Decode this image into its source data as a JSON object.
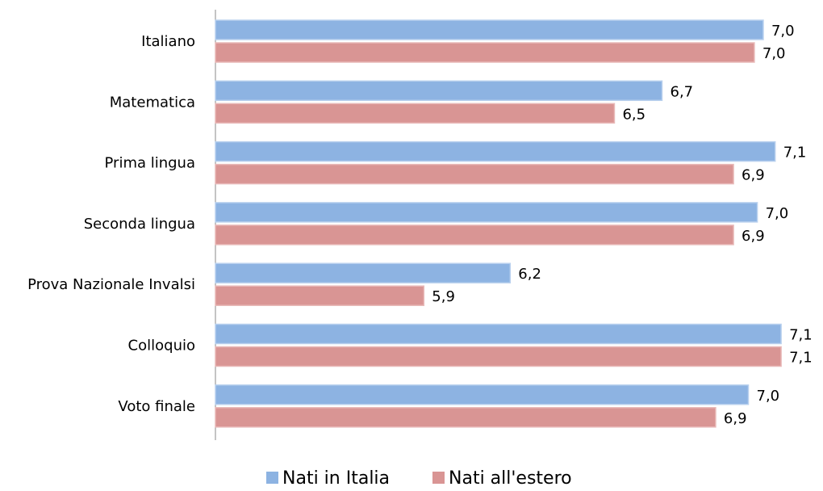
{
  "chart_data": {
    "type": "bar",
    "orientation": "horizontal",
    "categories": [
      "Italiano",
      "Matematica",
      "Prima lingua",
      "Seconda lingua",
      "Prova Nazionale Invalsi",
      "Colloquio",
      "Voto finale"
    ],
    "series": [
      {
        "name": "Nati in Italia",
        "color": "#8db3e2",
        "values": [
          7.04,
          6.7,
          7.08,
          7.02,
          6.19,
          7.1,
          6.99
        ],
        "value_labels": [
          "7,0",
          "6,7",
          "7,1",
          "7,0",
          "6,2",
          "7,1",
          "7,0"
        ]
      },
      {
        "name": "Nati all'estero",
        "color": "#d99594",
        "values": [
          7.01,
          6.54,
          6.94,
          6.94,
          5.9,
          7.1,
          6.88
        ],
        "value_labels": [
          "7,0",
          "6,5",
          "6,9",
          "6,9",
          "5,9",
          "7,1",
          "6,9"
        ]
      }
    ],
    "xlim": [
      5.2,
      7.2
    ],
    "legend": "bottom"
  }
}
